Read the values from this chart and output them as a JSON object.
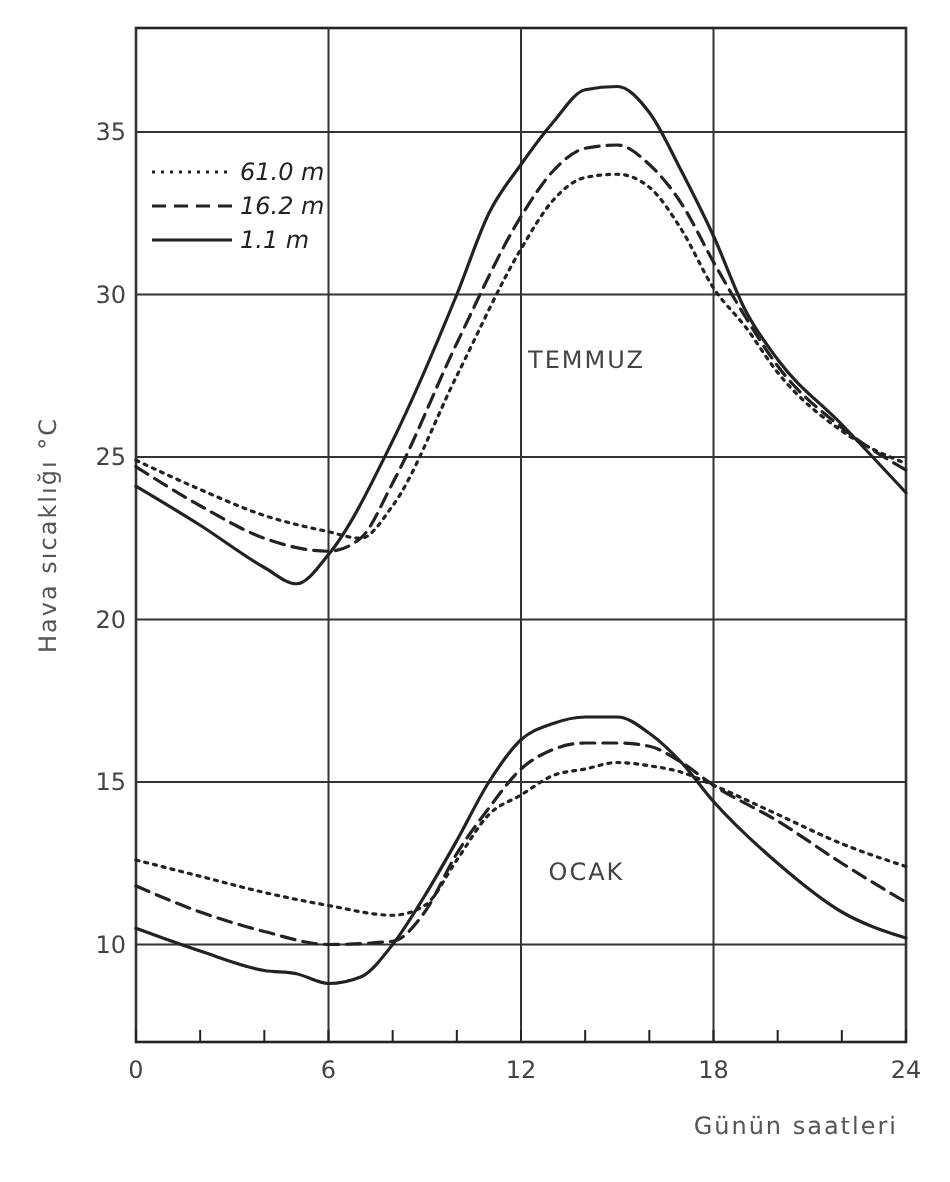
{
  "chart_data": {
    "type": "line",
    "xlabel": "Günün saatleri",
    "ylabel": "Hava sıcaklığı °C",
    "xlim": [
      0,
      24
    ],
    "ylim": [
      7,
      38.2
    ],
    "xticks": [
      0,
      {
        "value": 2,
        "label": null
      },
      {
        "value": 4,
        "label": null
      },
      6,
      {
        "value": 8,
        "label": null
      },
      {
        "value": 10,
        "label": null
      },
      12,
      {
        "value": 14,
        "label": null
      },
      {
        "value": 16,
        "label": null
      },
      18,
      {
        "value": 20,
        "label": null
      },
      {
        "value": 22,
        "label": null
      },
      24
    ],
    "yticks": [
      10,
      15,
      20,
      25,
      30,
      35
    ],
    "grid": true,
    "legend": "top left",
    "annotations": [
      "TEMMUZ",
      "OCAK"
    ],
    "series": [
      {
        "name": "61.0 m",
        "color": "#222222",
        "line_style": "dotted",
        "x": [
          0,
          2,
          4,
          6,
          7,
          8,
          10,
          12,
          13,
          14,
          15,
          16,
          17,
          18,
          19,
          20,
          22,
          24
        ],
        "values": [
          24.9,
          24,
          23.2,
          22.7,
          22.5,
          23.5,
          27.5,
          31.4,
          32.9,
          33.6,
          33.7,
          33.3,
          32,
          30.2,
          29,
          27.6,
          25.8,
          24.8
        ]
      },
      {
        "name": "16.2 m",
        "color": "#222222",
        "line_style": "dashed",
        "x": [
          0,
          2,
          4,
          6,
          7,
          8,
          10,
          12,
          13,
          14,
          15,
          16,
          17,
          18,
          19,
          20,
          22,
          24
        ],
        "values": [
          24.7,
          23.5,
          22.5,
          22.1,
          22.5,
          24.2,
          28.5,
          32.4,
          33.8,
          34.5,
          34.6,
          34,
          32.8,
          31,
          29.3,
          27.8,
          25.9,
          24.6
        ]
      },
      {
        "name": "1.1 m",
        "color": "#222222",
        "line_style": "solid",
        "x": [
          0,
          2,
          4,
          5,
          6,
          8,
          10,
          11,
          12,
          13,
          14,
          15,
          16,
          17,
          18,
          19,
          20,
          22,
          24
        ],
        "values": [
          24.1,
          22.9,
          21.6,
          21.1,
          22,
          25.5,
          30,
          32.5,
          34,
          35.3,
          36.3,
          36.4,
          35.6,
          33.8,
          31.8,
          29.5,
          28,
          26,
          23.9
        ]
      },
      {
        "color": "#222222",
        "line_style": "dotted",
        "x": [
          0,
          2,
          4,
          6,
          8,
          9,
          10,
          11,
          12,
          13,
          14,
          15,
          16,
          17,
          18,
          20,
          22,
          24
        ],
        "values": [
          12.6,
          12.1,
          11.6,
          11.2,
          10.9,
          11.2,
          12.6,
          14,
          14.6,
          15.2,
          15.4,
          15.6,
          15.5,
          15.3,
          14.9,
          14,
          13.1,
          12.4
        ]
      },
      {
        "color": "#222222",
        "line_style": "dashed",
        "x": [
          0,
          2,
          4,
          6,
          8,
          9,
          10,
          11,
          12,
          13,
          14,
          15,
          16,
          17,
          18,
          20,
          22,
          24
        ],
        "values": [
          11.8,
          11,
          10.4,
          10,
          10.1,
          11,
          12.8,
          14.2,
          15.4,
          16,
          16.2,
          16.2,
          16.1,
          15.6,
          14.9,
          13.8,
          12.5,
          11.3
        ]
      },
      {
        "color": "#222222",
        "line_style": "solid",
        "x": [
          0,
          2,
          4,
          5,
          6,
          7,
          8,
          9,
          10,
          11,
          12,
          13,
          14,
          15,
          16,
          17,
          18,
          20,
          22,
          24
        ],
        "values": [
          10.5,
          9.8,
          9.2,
          9.1,
          8.8,
          9,
          10,
          11.5,
          13.2,
          15,
          16.3,
          16.8,
          17,
          17,
          16.5,
          15.6,
          14.4,
          12.5,
          11,
          10.2
        ]
      }
    ]
  }
}
